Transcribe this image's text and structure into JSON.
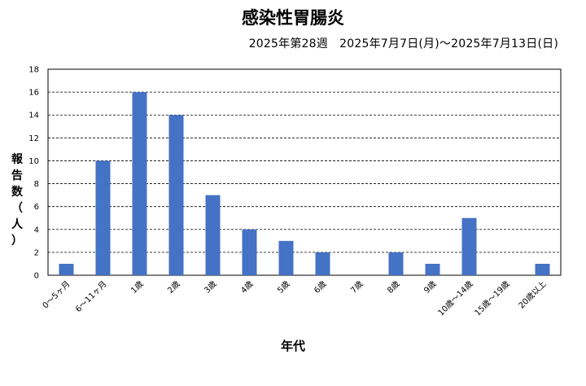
{
  "chart_data": {
    "type": "bar",
    "title": "感染性胃腸炎",
    "subtitle": "2025年第28週　2025年7月7日(月)～2025年7月13日(日)",
    "xlabel": "年代",
    "ylabel_chars": [
      "報",
      "告",
      "数",
      "（",
      "人",
      "）"
    ],
    "categories": [
      "0～5ヶ月",
      "6～11ヶ月",
      "1歳",
      "2歳",
      "3歳",
      "4歳",
      "5歳",
      "6歳",
      "7歳",
      "8歳",
      "9歳",
      "10歳～14歳",
      "15歳～19歳",
      "20歳以上"
    ],
    "values": [
      1,
      10,
      16,
      14,
      7,
      4,
      3,
      2,
      0,
      2,
      1,
      5,
      0,
      1
    ],
    "ylim": [
      0,
      18
    ],
    "yticks": [
      0,
      2,
      4,
      6,
      8,
      10,
      12,
      14,
      16,
      18
    ],
    "bar_color": "#4472C4",
    "grid": true,
    "legend": "none"
  }
}
